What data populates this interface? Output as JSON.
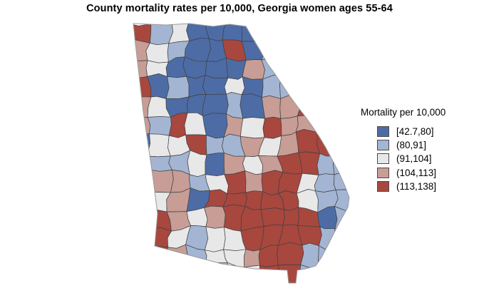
{
  "title": "County mortality rates per 10,000, Georgia women ages 55-64",
  "legend": {
    "title": "Mortality per 10,000",
    "items": [
      {
        "label": "[42.7,80]",
        "color": "#4d6ca6"
      },
      {
        "label": "(80,91]",
        "color": "#a3b5d3"
      },
      {
        "label": "(91,104]",
        "color": "#e8e8e8"
      },
      {
        "label": "(104,113]",
        "color": "#c79d96"
      },
      {
        "label": "(113,138]",
        "color": "#a8473e"
      }
    ]
  },
  "chart_data": {
    "type": "choropleth",
    "region": "Georgia, USA counties",
    "title": "County mortality rates per 10,000, Georgia women ages 55-64",
    "legend_title": "Mortality per 10,000",
    "legend_position": "right",
    "value_min": 42.7,
    "value_max": 138,
    "bins": [
      {
        "range": "[42.7,80]",
        "min": 42.7,
        "max": 80,
        "color": "#4d6ca6"
      },
      {
        "range": "(80,91]",
        "min": 80,
        "max": 91,
        "color": "#a3b5d3"
      },
      {
        "range": "(91,104]",
        "min": 91,
        "max": 104,
        "color": "#e8e8e8"
      },
      {
        "range": "(104,113]",
        "min": 104,
        "max": 113,
        "color": "#c79d96"
      },
      {
        "range": "(113,138]",
        "min": 113,
        "max": 138,
        "color": "#a8473e"
      }
    ],
    "spatial_pattern": "Low (blue) mortality across north Georgia and metro Atlanta and along the coast; high (dark red) mortality across south-central and southeastern interior counties; mixed white/pink band through middle Georgia; scattered red counties on the northwest and west border.",
    "county_grid": {
      "note": "Approximate bin index (0-4) per county cell; rows north to south, columns west to east; cells outside the state outline are clipped.",
      "cols": 12,
      "rows": 14,
      "classes": [
        [
          4,
          1,
          2,
          0,
          0,
          0,
          0,
          1,
          2,
          2,
          2,
          2
        ],
        [
          3,
          2,
          1,
          0,
          0,
          4,
          0,
          1,
          1,
          2,
          2,
          2
        ],
        [
          3,
          2,
          0,
          0,
          0,
          0,
          3,
          1,
          2,
          2,
          2,
          2
        ],
        [
          4,
          0,
          1,
          0,
          0,
          2,
          0,
          1,
          1,
          1,
          2,
          2
        ],
        [
          3,
          2,
          0,
          0,
          0,
          1,
          0,
          3,
          3,
          4,
          1,
          2
        ],
        [
          3,
          1,
          4,
          2,
          0,
          3,
          2,
          4,
          3,
          3,
          4,
          2
        ],
        [
          0,
          2,
          2,
          4,
          1,
          1,
          3,
          2,
          3,
          4,
          4,
          1
        ],
        [
          3,
          1,
          1,
          2,
          0,
          3,
          2,
          3,
          4,
          4,
          1,
          1
        ],
        [
          2,
          3,
          3,
          1,
          2,
          4,
          3,
          4,
          4,
          2,
          1,
          1
        ],
        [
          3,
          2,
          3,
          0,
          4,
          4,
          4,
          4,
          4,
          2,
          1,
          1
        ],
        [
          4,
          4,
          3,
          2,
          3,
          4,
          4,
          4,
          4,
          4,
          0,
          1
        ],
        [
          3,
          4,
          2,
          1,
          2,
          2,
          4,
          4,
          4,
          4,
          1,
          1
        ],
        [
          2,
          4,
          3,
          1,
          2,
          2,
          3,
          4,
          4,
          1,
          1,
          1
        ],
        [
          2,
          2,
          2,
          2,
          1,
          2,
          2,
          4,
          4,
          1,
          1,
          1
        ]
      ]
    }
  }
}
